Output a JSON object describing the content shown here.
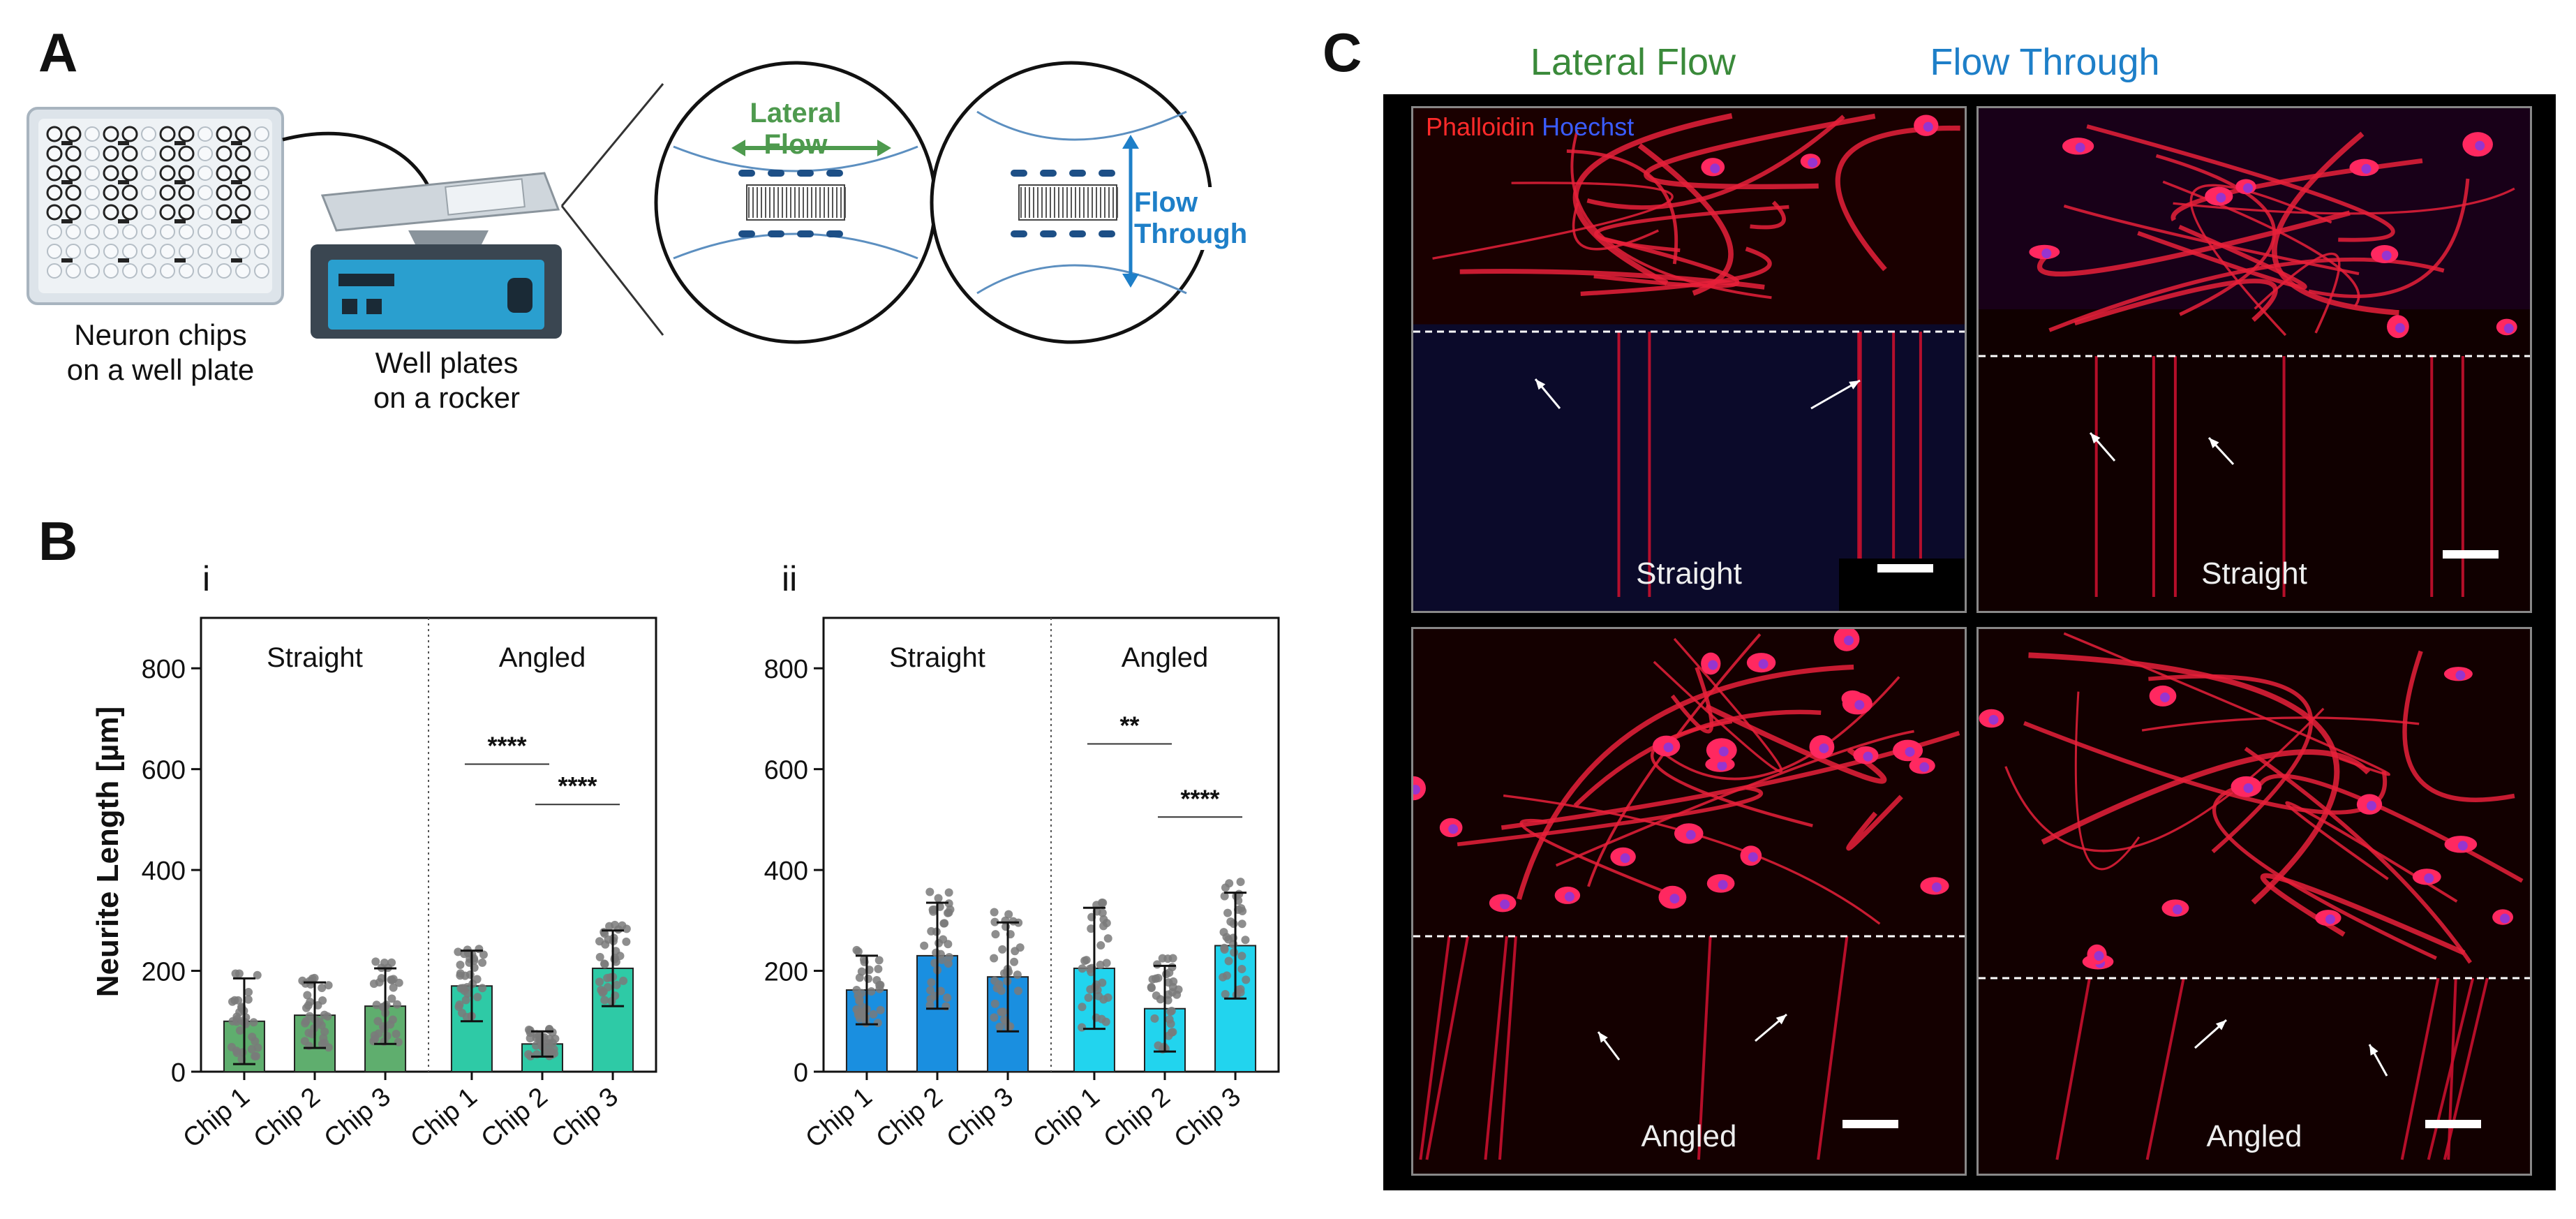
{
  "panel_letters": {
    "a": "A",
    "b": "B",
    "c": "C"
  },
  "panel_a": {
    "chip_label": "Neuron chips\non a well plate",
    "rocker_label": "Well plates\non a rocker",
    "lateral_flow": "Lateral Flow",
    "flow_through": "Flow Through"
  },
  "panel_b": {
    "sub_i": "i",
    "sub_ii": "ii",
    "ylabel": "Neurite Length [µm]"
  },
  "panel_c": {
    "col_lateral": "Lateral Flow",
    "col_through": "Flow Through",
    "stain_phalloidin": "Phalloidin",
    "stain_hoechst": "Hoechst",
    "label_straight_1": "Straight",
    "label_straight_2": "Straight",
    "label_angled_1": "Angled",
    "label_angled_2": "Angled"
  },
  "colors": {
    "lateral_green": "#3a8a3a",
    "through_blue": "#1e7fc8",
    "bar_green_straight": "#5fae6e",
    "bar_green_angled": "#2ecaa6",
    "bar_blue_straight": "#1a8fe0",
    "bar_blue_angled": "#22d4ee"
  },
  "chart_data": [
    {
      "type": "bar",
      "subpanel": "i",
      "groups": [
        "Straight",
        "Angled"
      ],
      "categories": [
        "Chip 1",
        "Chip 2",
        "Chip 3",
        "Chip 1",
        "Chip 2",
        "Chip 3"
      ],
      "values": [
        100,
        112,
        130,
        170,
        55,
        205
      ],
      "error_sd": [
        85,
        65,
        75,
        70,
        25,
        75
      ],
      "ylabel": "Neurite Length [µm]",
      "yticks": [
        0,
        200,
        400,
        600,
        800
      ],
      "ylim": [
        0,
        900
      ],
      "significance": [
        {
          "pair": [
            "Chip 1",
            "Chip 2"
          ],
          "group": "Angled",
          "label": "****",
          "y": 610
        },
        {
          "pair": [
            "Chip 2",
            "Chip 3"
          ],
          "group": "Angled",
          "label": "****",
          "y": 530
        }
      ]
    },
    {
      "type": "bar",
      "subpanel": "ii",
      "groups": [
        "Straight",
        "Angled"
      ],
      "categories": [
        "Chip 1",
        "Chip 2",
        "Chip 3",
        "Chip 1",
        "Chip 2",
        "Chip 3"
      ],
      "values": [
        162,
        230,
        188,
        205,
        125,
        250
      ],
      "error_sd": [
        68,
        105,
        108,
        120,
        85,
        105
      ],
      "ylabel": "Neurite Length [µm]",
      "yticks": [
        0,
        200,
        400,
        600,
        800
      ],
      "ylim": [
        0,
        900
      ],
      "significance": [
        {
          "pair": [
            "Chip 1",
            "Chip 2"
          ],
          "group": "Angled",
          "label": "**",
          "y": 650
        },
        {
          "pair": [
            "Chip 2",
            "Chip 3"
          ],
          "group": "Angled",
          "label": "****",
          "y": 505
        }
      ]
    }
  ]
}
